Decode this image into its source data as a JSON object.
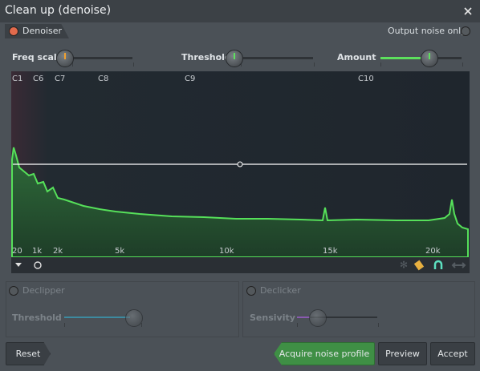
{
  "window": {
    "title": "Clean up (denoise)"
  },
  "denoiser": {
    "label": "Denoiser",
    "output_toggle": "Output noise only",
    "knobs": [
      "Freq scale",
      "Threshold",
      "Amount"
    ],
    "note_labels": [
      "C1",
      "C6",
      "C7",
      "C8",
      "C9",
      "C10"
    ],
    "freq_labels": [
      "20",
      "1k",
      "2k",
      "5k",
      "10k",
      "15k",
      "20k"
    ]
  },
  "declipper": {
    "label": "Declipper",
    "knob": "Threshold"
  },
  "declicker": {
    "label": "Declicker",
    "knob": "Sensivity"
  },
  "buttons": [
    "Reset",
    "Acquire noise profile",
    "Preview",
    "Accept"
  ]
}
